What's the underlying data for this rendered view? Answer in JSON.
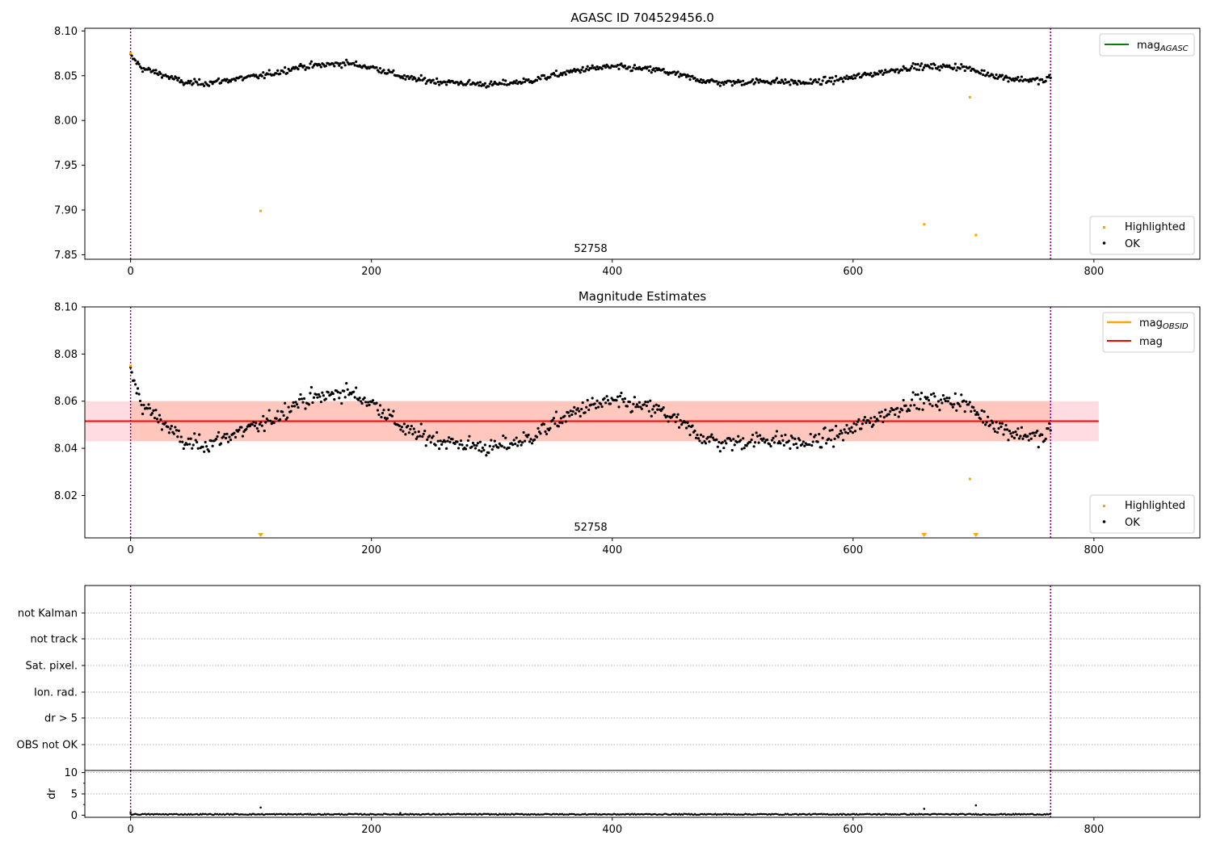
{
  "chart_data": [
    {
      "type": "scatter",
      "title": "AGASC ID 704529456.0",
      "xlim": [
        -38,
        888
      ],
      "ylim": [
        7.845,
        8.103
      ],
      "xticks": [
        0,
        200,
        400,
        600,
        800
      ],
      "yticks": [
        7.85,
        7.9,
        7.95,
        8.0,
        8.05,
        8.1
      ],
      "ytick_labels": [
        "7.85",
        "7.90",
        "7.95",
        "8.00",
        "8.05",
        "8.10"
      ],
      "obsid_annotation": "52758",
      "vlines": [
        0,
        764
      ],
      "mag_agasc": 8.05,
      "legend_lines": [
        {
          "label": "mag",
          "sub": "AGASC",
          "color": "#008000"
        }
      ],
      "legend_points": [
        {
          "label": "Highlighted",
          "color": "#ffa500"
        },
        {
          "label": "OK",
          "color": "#000000"
        }
      ],
      "highlighted": [
        [
          0,
          8.075
        ],
        [
          108,
          7.899
        ],
        [
          697,
          8.026
        ],
        [
          659,
          7.884
        ],
        [
          702,
          7.872
        ]
      ],
      "ok_series": {
        "n_points": 764,
        "x_range": [
          0,
          764
        ],
        "trend_knots": [
          [
            0,
            8.072
          ],
          [
            10,
            8.058
          ],
          [
            25,
            8.052
          ],
          [
            45,
            8.042
          ],
          [
            65,
            8.042
          ],
          [
            85,
            8.046
          ],
          [
            110,
            8.05
          ],
          [
            140,
            8.06
          ],
          [
            180,
            8.064
          ],
          [
            205,
            8.058
          ],
          [
            230,
            8.047
          ],
          [
            260,
            8.043
          ],
          [
            300,
            8.04
          ],
          [
            330,
            8.044
          ],
          [
            350,
            8.05
          ],
          [
            375,
            8.057
          ],
          [
            400,
            8.06
          ],
          [
            440,
            8.056
          ],
          [
            470,
            8.046
          ],
          [
            490,
            8.042
          ],
          [
            530,
            8.044
          ],
          [
            560,
            8.042
          ],
          [
            590,
            8.046
          ],
          [
            620,
            8.053
          ],
          [
            650,
            8.06
          ],
          [
            690,
            8.06
          ],
          [
            705,
            8.054
          ],
          [
            730,
            8.047
          ],
          [
            760,
            8.044
          ],
          [
            764,
            8.05
          ]
        ],
        "scatter": 0.0045
      }
    },
    {
      "type": "scatter",
      "title": "Magnitude Estimates",
      "xlim": [
        -38,
        888
      ],
      "ylim": [
        8.002,
        8.1
      ],
      "xticks": [
        0,
        200,
        400,
        600,
        800
      ],
      "yticks": [
        8.02,
        8.04,
        8.06,
        8.08,
        8.1
      ],
      "ytick_labels": [
        "8.02",
        "8.04",
        "8.06",
        "8.08",
        "8.10"
      ],
      "obsid_annotation": "52758",
      "vlines": [
        0,
        764
      ],
      "mag": 8.0515,
      "mag_band": [
        8.043,
        8.06
      ],
      "mag_obsid_band": [
        8.043,
        8.06
      ],
      "band_x": [
        -38,
        804
      ],
      "legend_lines": [
        {
          "label": "mag",
          "sub": "OBSID",
          "color": "#ffa500"
        },
        {
          "label": "mag",
          "sub": "",
          "color": "#ff0000"
        }
      ],
      "legend_points": [
        {
          "label": "Highlighted",
          "color": "#ffa500"
        },
        {
          "label": "OK",
          "color": "#000000"
        }
      ],
      "highlighted": [
        [
          0,
          8.075
        ],
        [
          697,
          8.027
        ]
      ],
      "out_of_range_markers": [
        108,
        659,
        702
      ]
    },
    {
      "type": "scatter",
      "title": "",
      "xlim": [
        -38,
        888
      ],
      "flag_rows": [
        "not Kalman",
        "not track",
        "Sat. pixel.",
        "Ion. rad.",
        "dr > 5",
        "OBS not OK"
      ],
      "vlines": [
        0,
        764
      ]
    },
    {
      "type": "scatter",
      "ylabel": "dr",
      "xlim": [
        -38,
        888
      ],
      "ylim": [
        -0.5,
        10.5
      ],
      "yticks": [
        0,
        5,
        10
      ],
      "ytick_labels": [
        "0",
        "5",
        "10"
      ],
      "xticks": [
        0,
        200,
        400,
        600,
        800
      ],
      "xtick_labels": [
        "0",
        "200",
        "400",
        "600",
        "800"
      ],
      "vlines": [
        0,
        764
      ],
      "dr_baseline": 0.2,
      "dr_spikes": [
        [
          0,
          0.7
        ],
        [
          108,
          1.8
        ],
        [
          224,
          0.5
        ],
        [
          659,
          1.5
        ],
        [
          702,
          2.3
        ]
      ]
    }
  ],
  "colors": {
    "ok": "#000000",
    "highlighted": "#ffa500",
    "vline": "#800080",
    "mag": "#ff0000",
    "agasc": "#008000",
    "band_pink": "#ffc0cb",
    "band_orange": "#ffa07a",
    "grid": "#b0b0b0"
  }
}
